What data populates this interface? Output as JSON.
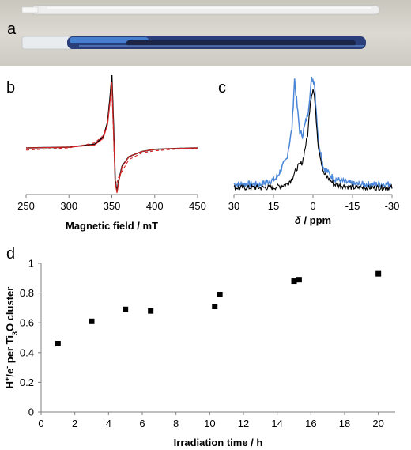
{
  "panels": {
    "a": "a",
    "b": "b",
    "c": "c",
    "d": "d"
  },
  "photo": {
    "tube_top_color": "#ececec",
    "tube_bottom_color": "#2a3f7a",
    "blue_streak_color": "#4a86d8",
    "background_color": "#d9d6cf"
  },
  "chart_data": [
    {
      "panel": "b",
      "type": "line",
      "title": "",
      "xlabel": "Magnetic field / mT",
      "ylabel": "",
      "xlim": [
        250,
        450
      ],
      "x_ticks": [
        "250",
        "300",
        "350",
        "400",
        "450"
      ],
      "series": [
        {
          "color": "#000000",
          "style": "solid",
          "x": [
            250,
            300,
            330,
            340,
            345,
            348,
            350,
            352,
            354,
            356,
            358,
            362,
            370,
            385,
            400,
            420,
            450
          ],
          "y": [
            0.0,
            0.01,
            0.05,
            0.15,
            0.35,
            0.7,
            1.0,
            0.3,
            -0.45,
            -0.6,
            -0.45,
            -0.25,
            -0.12,
            -0.05,
            -0.02,
            -0.01,
            0.0
          ]
        },
        {
          "color": "#d62728",
          "style": "solid",
          "x": [
            250,
            300,
            330,
            340,
            345,
            348,
            350,
            352,
            354,
            356,
            358,
            362,
            370,
            385,
            400,
            420,
            450
          ],
          "y": [
            0.0,
            0.01,
            0.04,
            0.13,
            0.32,
            0.65,
            0.9,
            0.25,
            -0.47,
            -0.62,
            -0.47,
            -0.26,
            -0.12,
            -0.05,
            -0.02,
            -0.01,
            0.0
          ]
        },
        {
          "color": "#d62728",
          "style": "dashed",
          "x": [
            250,
            300,
            330,
            340,
            345,
            350,
            354,
            358,
            370,
            385,
            400,
            420,
            450
          ],
          "y": [
            -0.03,
            0.0,
            0.07,
            0.17,
            0.32,
            0.85,
            -0.55,
            -0.4,
            -0.16,
            -0.07,
            -0.04,
            -0.02,
            -0.01
          ]
        }
      ]
    },
    {
      "panel": "c",
      "type": "line",
      "title": "",
      "xlabel": "δ / ppm",
      "xlabel_symbol": "δ",
      "xlabel_unit": " / ppm",
      "ylabel": "",
      "xlim": [
        30,
        -30
      ],
      "x_ticks": [
        "30",
        "15",
        "0",
        "-15",
        "-30"
      ],
      "series": [
        {
          "color": "#4a86d8",
          "x": [
            30,
            20,
            14,
            10,
            8,
            7,
            6,
            5,
            4,
            2,
            0.5,
            -0.5,
            -1,
            -2,
            -4,
            -8,
            -15,
            -30
          ],
          "y": [
            0.05,
            0.05,
            0.1,
            0.28,
            0.55,
            1.0,
            0.75,
            0.52,
            0.5,
            0.68,
            1.0,
            0.98,
            0.8,
            0.45,
            0.2,
            0.1,
            0.05,
            0.05
          ],
          "noise": 0.03
        },
        {
          "color": "#000000",
          "x": [
            30,
            15,
            10,
            8,
            6,
            4,
            2,
            1,
            0,
            -0.5,
            -1,
            -2,
            -4,
            -8,
            -15,
            -30
          ],
          "y": [
            0.02,
            0.02,
            0.05,
            0.1,
            0.2,
            0.25,
            0.5,
            0.8,
            0.92,
            0.85,
            0.7,
            0.4,
            0.15,
            0.05,
            0.02,
            0.02
          ],
          "noise": 0.025
        }
      ]
    },
    {
      "panel": "d",
      "type": "scatter",
      "title": "",
      "xlabel": "Irradiation time / h",
      "ylabel_parts": [
        "H",
        "+",
        "/e",
        "-",
        " per Ti",
        "3",
        "O cluster"
      ],
      "xlim": [
        0,
        21
      ],
      "ylim": [
        0,
        1
      ],
      "x_ticks": [
        0,
        2,
        4,
        6,
        8,
        10,
        12,
        14,
        16,
        18,
        20
      ],
      "y_ticks": [
        0,
        0.2,
        0.4,
        0.6,
        0.8,
        1
      ],
      "y_tick_labels": [
        "0",
        "0.2",
        "0.4",
        "0.6",
        "0.8",
        "1"
      ],
      "points": [
        {
          "x": 1,
          "y": 0.46
        },
        {
          "x": 3,
          "y": 0.61
        },
        {
          "x": 5,
          "y": 0.69
        },
        {
          "x": 6.5,
          "y": 0.68
        },
        {
          "x": 10.3,
          "y": 0.71
        },
        {
          "x": 10.6,
          "y": 0.79
        },
        {
          "x": 15,
          "y": 0.88
        },
        {
          "x": 15.3,
          "y": 0.89
        },
        {
          "x": 20,
          "y": 0.93
        }
      ]
    }
  ]
}
